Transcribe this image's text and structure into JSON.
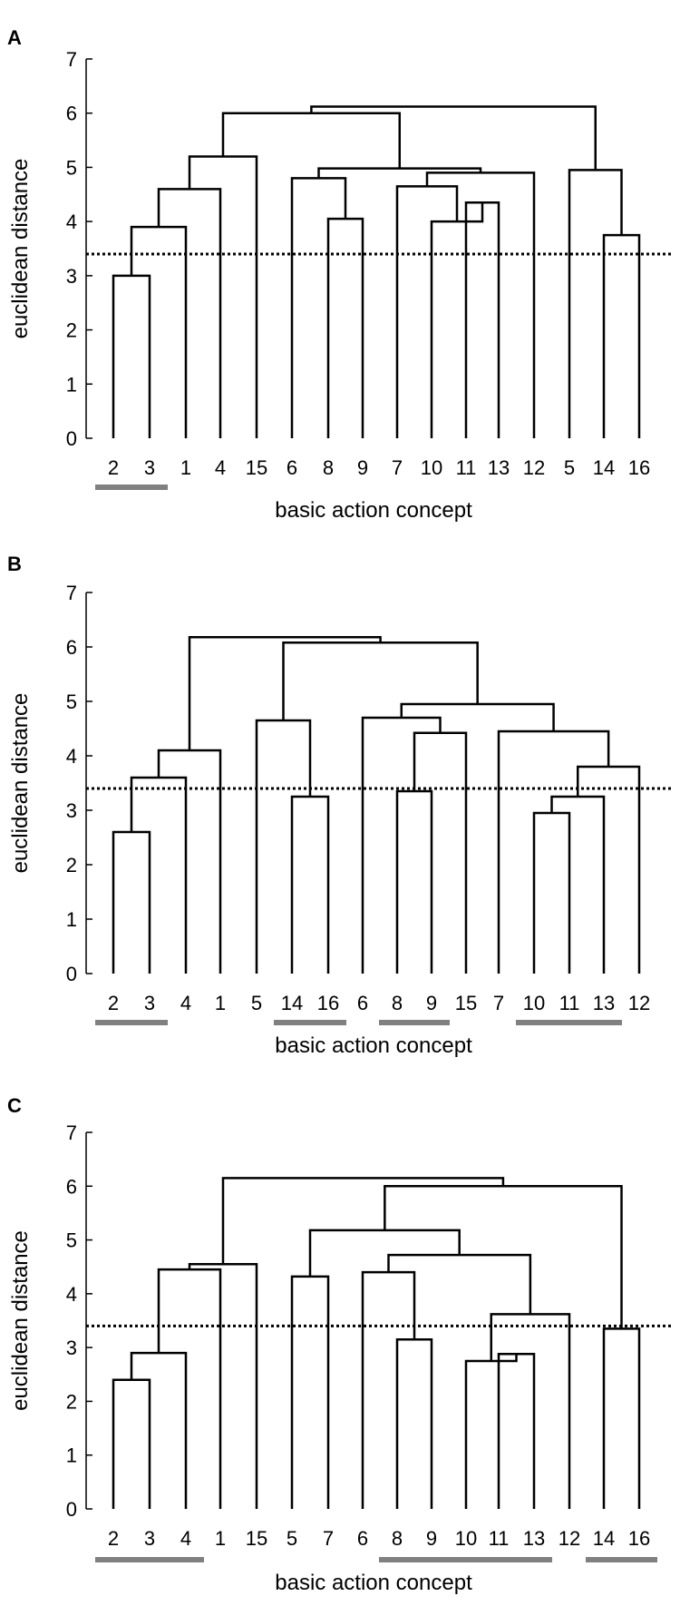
{
  "chart_data": [
    {
      "panel_label": "A",
      "type": "dendrogram",
      "xlabel": "basic action concept",
      "ylabel": "euclidean distance",
      "ylim": [
        0,
        7
      ],
      "yticks": [
        "0",
        "1",
        "2",
        "3",
        "4",
        "5",
        "6",
        "7"
      ],
      "threshold": 3.4,
      "leaves": [
        "2",
        "3",
        "1",
        "4",
        "15",
        "6",
        "8",
        "9",
        "7",
        "10",
        "11",
        "13",
        "12",
        "5",
        "14",
        "16"
      ],
      "merges": [
        {
          "a": "2",
          "b": "3",
          "height": 3.0
        },
        {
          "a": "2+3",
          "b": "1",
          "height": 3.9
        },
        {
          "a": "2+3+1",
          "b": "4",
          "height": 4.6
        },
        {
          "a": "2+3+1+4",
          "b": "15",
          "height": 5.2
        },
        {
          "a": "8",
          "b": "9",
          "height": 4.05
        },
        {
          "a": "6",
          "b": "8+9",
          "height": 4.8
        },
        {
          "a": "11",
          "b": "13",
          "height": 4.35
        },
        {
          "a": "10",
          "b": "11+13",
          "height": 4.0
        },
        {
          "a": "7",
          "b": "10+11+13",
          "height": 4.65
        },
        {
          "a": "7+10+11+13",
          "b": "12",
          "height": 4.9
        },
        {
          "a": "6+8+9",
          "b": "7+10+11+13+12",
          "height": 4.98
        },
        {
          "a": "2+3+1+4+15",
          "b": "6+8+9+7+10+11+13+12",
          "height": 6.0
        },
        {
          "a": "14",
          "b": "16",
          "height": 3.75
        },
        {
          "a": "5",
          "b": "14+16",
          "height": 4.95
        },
        {
          "a": "left",
          "b": "5+14+16",
          "height": 6.12
        }
      ],
      "groups": [
        [
          "2",
          "3"
        ]
      ]
    },
    {
      "panel_label": "B",
      "type": "dendrogram",
      "xlabel": "basic action concept",
      "ylabel": "euclidean distance",
      "ylim": [
        0,
        7
      ],
      "yticks": [
        "0",
        "1",
        "2",
        "3",
        "4",
        "5",
        "6",
        "7"
      ],
      "threshold": 3.4,
      "leaves": [
        "2",
        "3",
        "4",
        "1",
        "5",
        "14",
        "16",
        "6",
        "8",
        "9",
        "15",
        "7",
        "10",
        "11",
        "13",
        "12"
      ],
      "merges": [
        {
          "a": "2",
          "b": "3",
          "height": 2.6
        },
        {
          "a": "2+3",
          "b": "4",
          "height": 3.6
        },
        {
          "a": "2+3+4",
          "b": "1",
          "height": 4.1
        },
        {
          "a": "14",
          "b": "16",
          "height": 3.25
        },
        {
          "a": "5",
          "b": "14+16",
          "height": 4.65
        },
        {
          "a": "8",
          "b": "9",
          "height": 3.35
        },
        {
          "a": "8+9",
          "b": "15",
          "height": 4.42
        },
        {
          "a": "6",
          "b": "8+9+15",
          "height": 4.7
        },
        {
          "a": "10",
          "b": "11",
          "height": 2.95
        },
        {
          "a": "10+11",
          "b": "13",
          "height": 3.25
        },
        {
          "a": "10+11+13",
          "b": "12",
          "height": 3.8
        },
        {
          "a": "7",
          "b": "10+11+13+12",
          "height": 4.45
        },
        {
          "a": "6+8+9+15",
          "b": "7+10+11+13+12",
          "height": 4.95
        },
        {
          "a": "5+14+16",
          "b": "6+8+9+15+7+10+11+13+12",
          "height": 6.08
        },
        {
          "a": "2+3+4+1",
          "b": "rest",
          "height": 6.18
        }
      ],
      "groups": [
        [
          "2",
          "3"
        ],
        [
          "14",
          "16"
        ],
        [
          "8",
          "9"
        ],
        [
          "10",
          "11",
          "13"
        ]
      ]
    },
    {
      "panel_label": "C",
      "type": "dendrogram",
      "xlabel": "basic action concept",
      "ylabel": "euclidean distance",
      "ylim": [
        0,
        7
      ],
      "yticks": [
        "0",
        "1",
        "2",
        "3",
        "4",
        "5",
        "6",
        "7"
      ],
      "threshold": 3.4,
      "leaves": [
        "2",
        "3",
        "4",
        "1",
        "15",
        "5",
        "7",
        "6",
        "8",
        "9",
        "10",
        "11",
        "13",
        "12",
        "14",
        "16"
      ],
      "merges": [
        {
          "a": "2",
          "b": "3",
          "height": 2.4
        },
        {
          "a": "2+3",
          "b": "4",
          "height": 2.9
        },
        {
          "a": "2+3+4",
          "b": "1",
          "height": 4.45
        },
        {
          "a": "2+3+4+1",
          "b": "15",
          "height": 4.55
        },
        {
          "a": "5",
          "b": "7",
          "height": 4.32
        },
        {
          "a": "8",
          "b": "9",
          "height": 3.15
        },
        {
          "a": "6",
          "b": "8+9",
          "height": 4.4
        },
        {
          "a": "11",
          "b": "13",
          "height": 2.88
        },
        {
          "a": "10",
          "b": "11+13",
          "height": 2.75
        },
        {
          "a": "10+11+13",
          "b": "12",
          "height": 3.62
        },
        {
          "a": "6+8+9",
          "b": "10+11+13+12",
          "height": 4.72
        },
        {
          "a": "5+7",
          "b": "6+8+9+10+11+13+12",
          "height": 5.18
        },
        {
          "a": "14",
          "b": "16",
          "height": 3.35
        },
        {
          "a": "5+7+6+8+9+10+11+13+12",
          "b": "14+16",
          "height": 6.0
        },
        {
          "a": "2+3+4+1+15",
          "b": "rest",
          "height": 6.15
        }
      ],
      "groups": [
        [
          "2",
          "3",
          "4"
        ],
        [
          "8",
          "9"
        ],
        [
          "10",
          "11",
          "13"
        ],
        [
          "14",
          "16"
        ]
      ]
    }
  ]
}
